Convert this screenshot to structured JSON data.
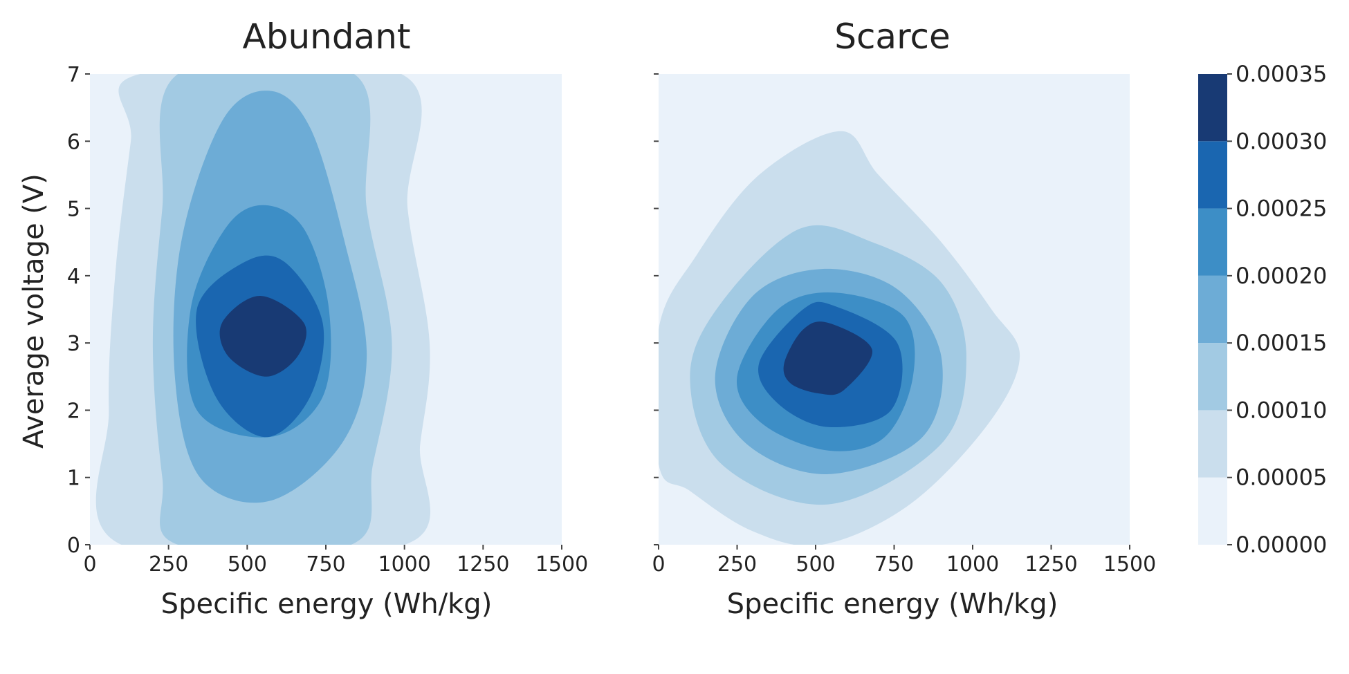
{
  "colorbar": {
    "levels": [
      "0.00000",
      "0.00005",
      "0.00010",
      "0.00015",
      "0.00020",
      "0.00025",
      "0.00030",
      "0.00035"
    ],
    "level_values": [
      0,
      5e-05,
      0.0001,
      0.00015,
      0.0002,
      0.00025,
      0.0003,
      0.00035
    ],
    "colors": [
      "#eaf2fa",
      "#cadeed",
      "#a2cae3",
      "#6dacd6",
      "#3d8ec6",
      "#1a66b0",
      "#183a74"
    ]
  },
  "chart_data": [
    {
      "type": "contour",
      "title": "Abundant",
      "xlabel": "Specific energy (Wh/kg)",
      "ylabel": "Average voltage (V)",
      "xlim": [
        0,
        1500
      ],
      "ylim": [
        0,
        7
      ],
      "x_ticks": [
        "0",
        "250",
        "500",
        "750",
        "1000",
        "1250",
        "1500"
      ],
      "y_ticks": [
        "0",
        "1",
        "2",
        "3",
        "4",
        "5",
        "6",
        "7"
      ],
      "background_level": 0,
      "contours": [
        {
          "level": 1,
          "points": [
            [
              100,
              0
            ],
            [
              60,
              2
            ],
            [
              80,
              4
            ],
            [
              130,
              6
            ],
            [
              160,
              7
            ],
            [
              990,
              7
            ],
            [
              1010,
              5
            ],
            [
              1080,
              3
            ],
            [
              1050,
              1.5
            ],
            [
              1000,
              0
            ]
          ]
        },
        {
          "level": 2,
          "points": [
            [
              280,
              0
            ],
            [
              230,
              1
            ],
            [
              200,
              3
            ],
            [
              230,
              5
            ],
            [
              280,
              7
            ],
            [
              840,
              7
            ],
            [
              880,
              5
            ],
            [
              960,
              3
            ],
            [
              900,
              1.2
            ],
            [
              830,
              0
            ]
          ]
        },
        {
          "level": 3,
          "points": [
            [
              350,
              1
            ],
            [
              270,
              2.5
            ],
            [
              290,
              4.5
            ],
            [
              420,
              6.3
            ],
            [
              570,
              6.75
            ],
            [
              700,
              6.2
            ],
            [
              810,
              4.5
            ],
            [
              880,
              2.8
            ],
            [
              800,
              1.5
            ],
            [
              570,
              0.65
            ]
          ]
        },
        {
          "level": 4,
          "points": [
            [
              340,
              2
            ],
            [
              320,
              3.5
            ],
            [
              430,
              4.7
            ],
            [
              550,
              5.05
            ],
            [
              680,
              4.7
            ],
            [
              760,
              3.5
            ],
            [
              740,
              2.2
            ],
            [
              570,
              1.6
            ]
          ]
        },
        {
          "level": 5,
          "points": [
            [
              400,
              2.2
            ],
            [
              340,
              3.5
            ],
            [
              490,
              4.2
            ],
            [
              620,
              4.2
            ],
            [
              740,
              3.3
            ],
            [
              700,
              2.2
            ],
            [
              560,
              1.6
            ]
          ]
        },
        {
          "level": 6,
          "points": [
            [
              440,
              2.8
            ],
            [
              420,
              3.3
            ],
            [
              540,
              3.7
            ],
            [
              680,
              3.3
            ],
            [
              660,
              2.8
            ],
            [
              560,
              2.5
            ]
          ]
        }
      ]
    },
    {
      "type": "contour",
      "title": "Scarce",
      "xlabel": "Specific energy (Wh/kg)",
      "xlim": [
        0,
        1500
      ],
      "ylim": [
        0,
        7
      ],
      "x_ticks": [
        "0",
        "250",
        "500",
        "750",
        "1000",
        "1250",
        "1500"
      ],
      "background_level": 0,
      "contours": [
        {
          "level": 1,
          "points": [
            [
              0,
              1.2
            ],
            [
              0,
              3.2
            ],
            [
              120,
              4.3
            ],
            [
              320,
              5.5
            ],
            [
              580,
              6.15
            ],
            [
              700,
              5.5
            ],
            [
              900,
              4.5
            ],
            [
              1060,
              3.5
            ],
            [
              1150,
              2.8
            ],
            [
              1050,
              1.8
            ],
            [
              800,
              0.6
            ],
            [
              520,
              0
            ],
            [
              300,
              0.2
            ],
            [
              100,
              0.8
            ]
          ]
        },
        {
          "level": 2,
          "points": [
            [
              100,
              2.5
            ],
            [
              200,
              3.6
            ],
            [
              450,
              4.7
            ],
            [
              680,
              4.5
            ],
            [
              900,
              3.9
            ],
            [
              980,
              2.8
            ],
            [
              900,
              1.5
            ],
            [
              540,
              0.6
            ],
            [
              200,
              1.2
            ]
          ]
        },
        {
          "level": 3,
          "points": [
            [
              180,
              2.5
            ],
            [
              300,
              3.7
            ],
            [
              520,
              4.1
            ],
            [
              760,
              3.8
            ],
            [
              900,
              2.8
            ],
            [
              840,
              1.6
            ],
            [
              540,
              1.05
            ],
            [
              280,
              1.5
            ]
          ]
        },
        {
          "level": 4,
          "points": [
            [
              250,
              2.5
            ],
            [
              380,
              3.5
            ],
            [
              560,
              3.75
            ],
            [
              780,
              3.4
            ],
            [
              810,
              2.5
            ],
            [
              720,
              1.6
            ],
            [
              540,
              1.4
            ],
            [
              330,
              1.8
            ]
          ]
        },
        {
          "level": 5,
          "points": [
            [
              320,
              2.7
            ],
            [
              460,
              3.5
            ],
            [
              560,
              3.55
            ],
            [
              760,
              3.0
            ],
            [
              740,
              2.0
            ],
            [
              540,
              1.75
            ],
            [
              380,
              2.1
            ]
          ]
        },
        {
          "level": 6,
          "points": [
            [
              400,
              2.7
            ],
            [
              460,
              3.2
            ],
            [
              540,
              3.3
            ],
            [
              680,
              2.9
            ],
            [
              590,
              2.3
            ],
            [
              510,
              2.25
            ],
            [
              420,
              2.4
            ]
          ]
        }
      ]
    }
  ]
}
